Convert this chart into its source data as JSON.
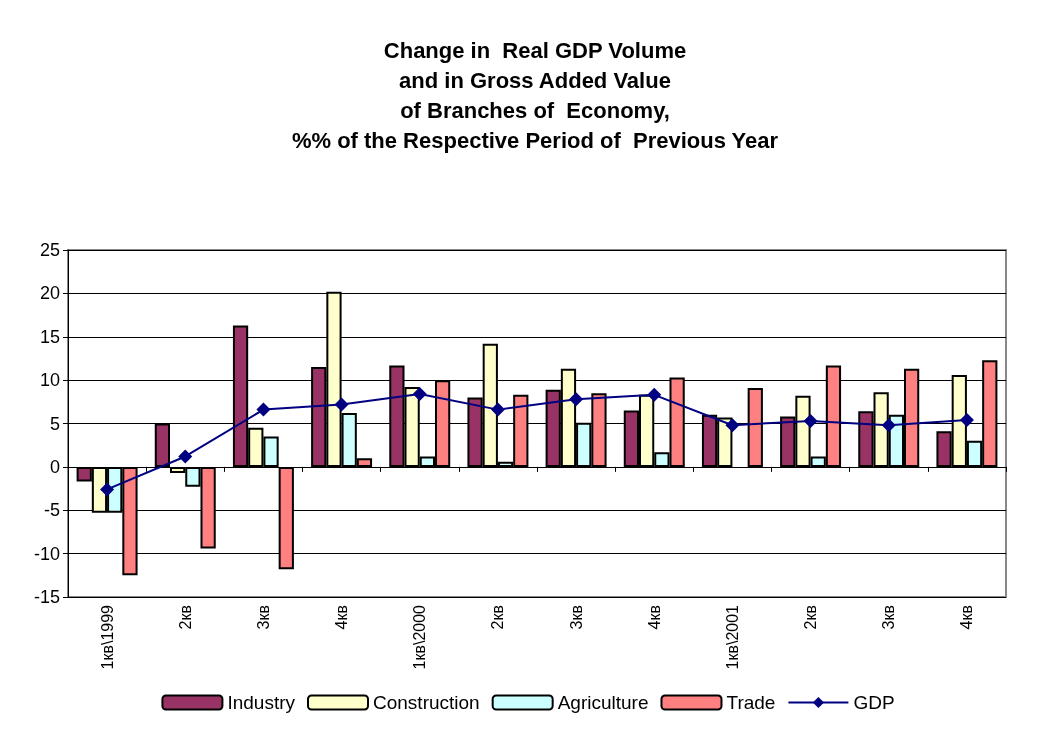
{
  "chart_data": {
    "type": "bar",
    "title": "Change in  Real GDP Volume\nand in Gross Added Value\nof Branches of  Economy,\n%% of the Respective Period of  Previous Year",
    "categories": [
      "1кв\\1999",
      "2кв",
      "3кв",
      "4кв",
      "1кв\\2000",
      "2кв",
      "3кв",
      "4кв",
      "1кв\\2001",
      "2кв",
      "3кв",
      "4кв"
    ],
    "series": [
      {
        "name": "Industry",
        "color": "#993366",
        "values": [
          -1.7,
          5,
          16.3,
          11.5,
          11.7,
          8,
          8.9,
          6.5,
          6,
          5.8,
          6.4,
          4.1
        ]
      },
      {
        "name": "Construction",
        "color": "#ffffcc",
        "values": [
          -5.3,
          -0.7,
          4.5,
          20.2,
          9.2,
          14.2,
          11.3,
          8.3,
          5.7,
          8.2,
          8.6,
          10.6
        ]
      },
      {
        "name": "Agriculture",
        "color": "#ccffff",
        "values": [
          -5.3,
          -2.3,
          3.5,
          6.2,
          1.2,
          0.6,
          5.1,
          1.7,
          null,
          1.2,
          6,
          3
        ]
      },
      {
        "name": "Trade",
        "color": "#ff8080",
        "values": [
          -12.5,
          -9.4,
          -11.8,
          1,
          10,
          8.3,
          8.5,
          10.3,
          9.1,
          11.7,
          11.3,
          12.3
        ]
      },
      {
        "name": "GDP",
        "type": "line",
        "color": "#000080",
        "marker": "diamond",
        "values": [
          -2.6,
          1.2,
          6.6,
          7.2,
          8.4,
          6.6,
          7.8,
          8.3,
          4.8,
          5.3,
          4.8,
          5.4
        ]
      }
    ],
    "ylim": [
      -15,
      25
    ],
    "yticks": [
      -15,
      -10,
      -5,
      0,
      5,
      10,
      15,
      20,
      25
    ],
    "grid": "y",
    "legend": "bottom"
  }
}
